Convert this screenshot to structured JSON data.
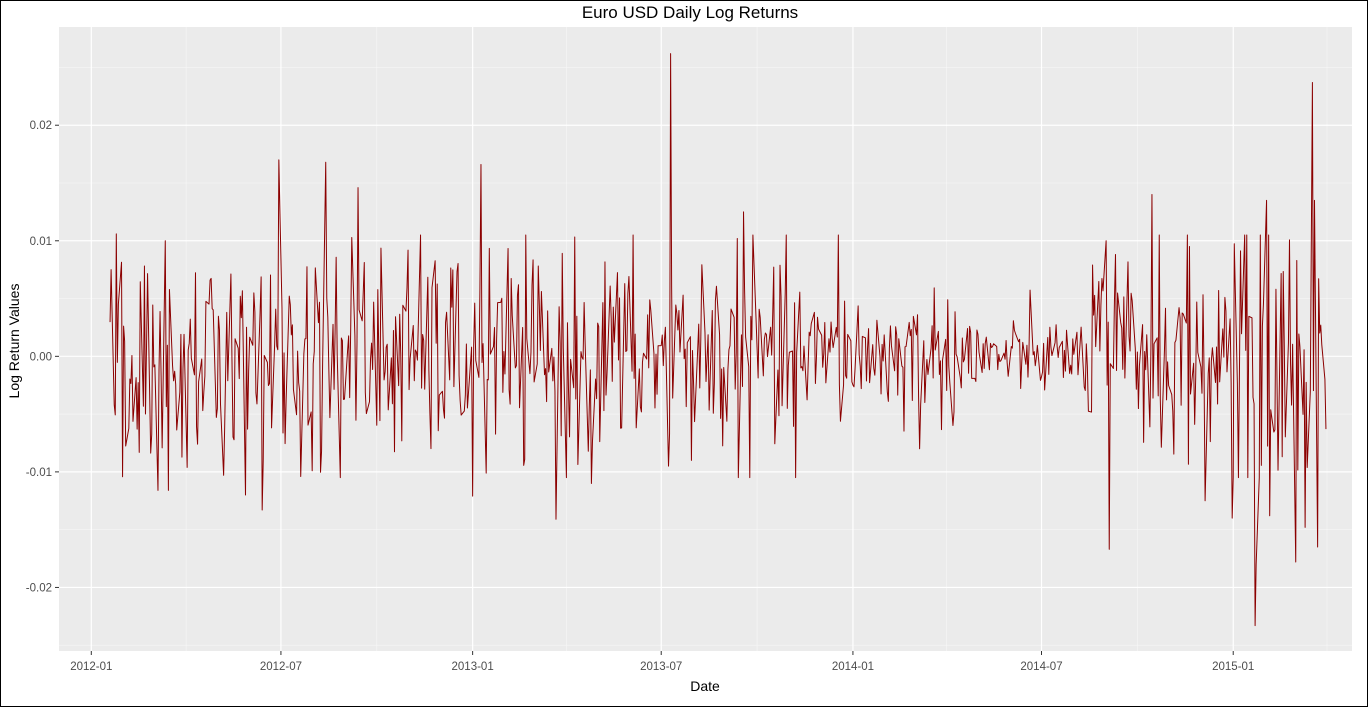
{
  "chart_data": {
    "type": "line",
    "title": "Euro USD Daily Log Returns",
    "xlabel": "Date",
    "ylabel": "Log Return Values",
    "x_start": "2012-01-19",
    "x_end": "2015-03-31",
    "xlim": [
      "2011-12-01",
      "2015-04-25"
    ],
    "ylim": [
      -0.0255,
      0.0285
    ],
    "x_ticks": [
      {
        "date": "2012-01-01",
        "label": "2012-01"
      },
      {
        "date": "2012-07-01",
        "label": "2012-07"
      },
      {
        "date": "2013-01-01",
        "label": "2013-01"
      },
      {
        "date": "2013-07-01",
        "label": "2013-07"
      },
      {
        "date": "2014-01-01",
        "label": "2014-01"
      },
      {
        "date": "2014-07-01",
        "label": "2014-07"
      },
      {
        "date": "2015-01-01",
        "label": "2015-01"
      }
    ],
    "x_minor_ticks": [
      "2012-04-01",
      "2012-10-01",
      "2013-04-01",
      "2013-10-01",
      "2014-04-01",
      "2014-10-01",
      "2015-04-01"
    ],
    "y_ticks": [
      {
        "value": -0.02,
        "label": "-0.02"
      },
      {
        "value": -0.01,
        "label": "-0.01"
      },
      {
        "value": 0.0,
        "label": "0.00"
      },
      {
        "value": 0.01,
        "label": "0.01"
      },
      {
        "value": 0.02,
        "label": "0.02"
      }
    ],
    "y_minor_ticks": [
      -0.025,
      -0.015,
      -0.005,
      0.005,
      0.015,
      0.025
    ],
    "grid": true,
    "series": [
      {
        "color": "#8b0000",
        "highlights": [
          {
            "date": "2012-01-20",
            "value": 0.0075
          },
          {
            "date": "2012-01-25",
            "value": 0.0106
          },
          {
            "date": "2012-02-14",
            "value": -0.0063
          },
          {
            "date": "2012-03-05",
            "value": -0.0116
          },
          {
            "date": "2012-03-15",
            "value": -0.0116
          },
          {
            "date": "2012-03-12",
            "value": 0.01
          },
          {
            "date": "2012-05-28",
            "value": -0.012
          },
          {
            "date": "2012-06-13",
            "value": -0.0133
          },
          {
            "date": "2012-06-29",
            "value": 0.017
          },
          {
            "date": "2012-07-20",
            "value": -0.0104
          },
          {
            "date": "2012-08-13",
            "value": 0.0168
          },
          {
            "date": "2012-09-13",
            "value": 0.0146
          },
          {
            "date": "2013-01-01",
            "value": -0.0121
          },
          {
            "date": "2013-01-09",
            "value": 0.0166
          },
          {
            "date": "2013-03-22",
            "value": -0.0141
          },
          {
            "date": "2013-04-25",
            "value": -0.011
          },
          {
            "date": "2013-07-10",
            "value": 0.0262
          },
          {
            "date": "2013-07-08",
            "value": -0.0095
          },
          {
            "date": "2013-09-18",
            "value": 0.0125
          },
          {
            "date": "2013-11-07",
            "value": -0.0105
          },
          {
            "date": "2013-12-18",
            "value": 0.0105
          },
          {
            "date": "2014-03-06",
            "value": -0.008
          },
          {
            "date": "2014-09-04",
            "value": -0.0167
          },
          {
            "date": "2014-09-01",
            "value": 0.01
          },
          {
            "date": "2014-10-15",
            "value": 0.014
          },
          {
            "date": "2014-12-05",
            "value": -0.0125
          },
          {
            "date": "2014-12-31",
            "value": -0.014
          },
          {
            "date": "2015-01-22",
            "value": -0.0233
          },
          {
            "date": "2015-01-23",
            "value": -0.018
          },
          {
            "date": "2015-02-02",
            "value": 0.0135
          },
          {
            "date": "2015-02-05",
            "value": -0.0138
          },
          {
            "date": "2015-03-02",
            "value": -0.0178
          },
          {
            "date": "2015-03-11",
            "value": -0.0148
          },
          {
            "date": "2015-03-18",
            "value": 0.0237
          },
          {
            "date": "2015-03-20",
            "value": 0.0135
          },
          {
            "date": "2015-03-23",
            "value": -0.0165
          },
          {
            "date": "2015-03-31",
            "value": -0.0063
          }
        ],
        "volatility_regimes": [
          {
            "from": "2012-01-19",
            "to": "2012-10-15",
            "sd": 0.005
          },
          {
            "from": "2012-10-15",
            "to": "2013-10-31",
            "sd": 0.0045
          },
          {
            "from": "2013-10-31",
            "to": "2014-05-01",
            "sd": 0.0028
          },
          {
            "from": "2014-05-01",
            "to": "2014-08-15",
            "sd": 0.0016
          },
          {
            "from": "2014-08-15",
            "to": "2015-01-01",
            "sd": 0.0045
          },
          {
            "from": "2015-01-01",
            "to": "2015-03-31",
            "sd": 0.0065
          }
        ]
      }
    ]
  }
}
